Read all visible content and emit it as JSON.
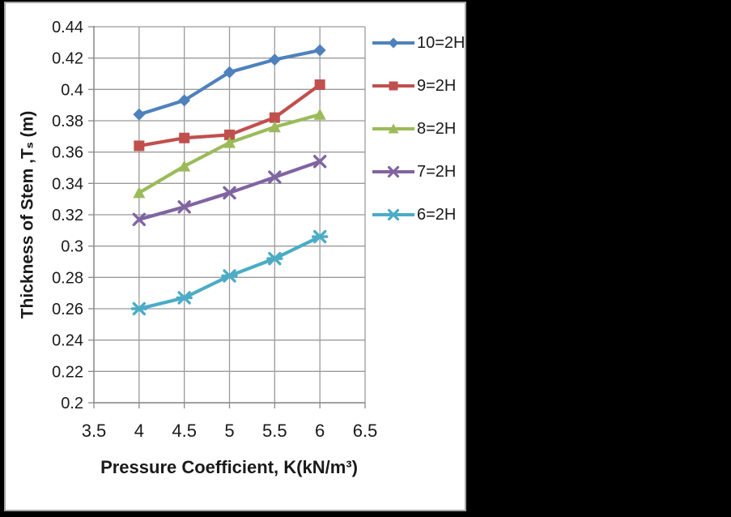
{
  "chart_data": {
    "type": "line",
    "title": "",
    "xlabel": "Pressure Coefficient, K(kN/m³)",
    "ylabel": "Thickness of Stem ,Tₛ (m)",
    "x": [
      4,
      4.5,
      5,
      5.5,
      6
    ],
    "xlim": [
      3.5,
      6.5
    ],
    "ylim": [
      0.2,
      0.44
    ],
    "x_ticks": [
      "3.5",
      "4",
      "4.5",
      "5",
      "5.5",
      "6",
      "6.5"
    ],
    "y_ticks": [
      "0.44",
      "0.42",
      "0.4",
      "0.38",
      "0.36",
      "0.34",
      "0.32",
      "0.3",
      "0.28",
      "0.26",
      "0.24",
      "0.22",
      "0.2"
    ],
    "grid": true,
    "legend_position": "right",
    "series": [
      {
        "name": "10=2H",
        "marker": "diamond",
        "color": "#4F81BD",
        "values": [
          0.384,
          0.393,
          0.411,
          0.419,
          0.425
        ]
      },
      {
        "name": "9=2H",
        "marker": "square",
        "color": "#C0504D",
        "values": [
          0.364,
          0.369,
          0.371,
          0.382,
          0.403
        ]
      },
      {
        "name": "8=2H",
        "marker": "triangle",
        "color": "#9BBB59",
        "values": [
          0.334,
          0.351,
          0.366,
          0.376,
          0.384
        ]
      },
      {
        "name": "7=2H",
        "marker": "x",
        "color": "#8064A2",
        "values": [
          0.317,
          0.325,
          0.334,
          0.344,
          0.354
        ]
      },
      {
        "name": "6=2H",
        "marker": "star",
        "color": "#4BACC6",
        "values": [
          0.26,
          0.267,
          0.281,
          0.292,
          0.306
        ]
      }
    ],
    "colors": {
      "gridline": "#9b9b9b",
      "axis": "#8a8a8a",
      "text": "#1a1a1a",
      "panel_bg": "#ffffff",
      "panel_border": "#a6a6a6",
      "surround": "#000000"
    }
  }
}
